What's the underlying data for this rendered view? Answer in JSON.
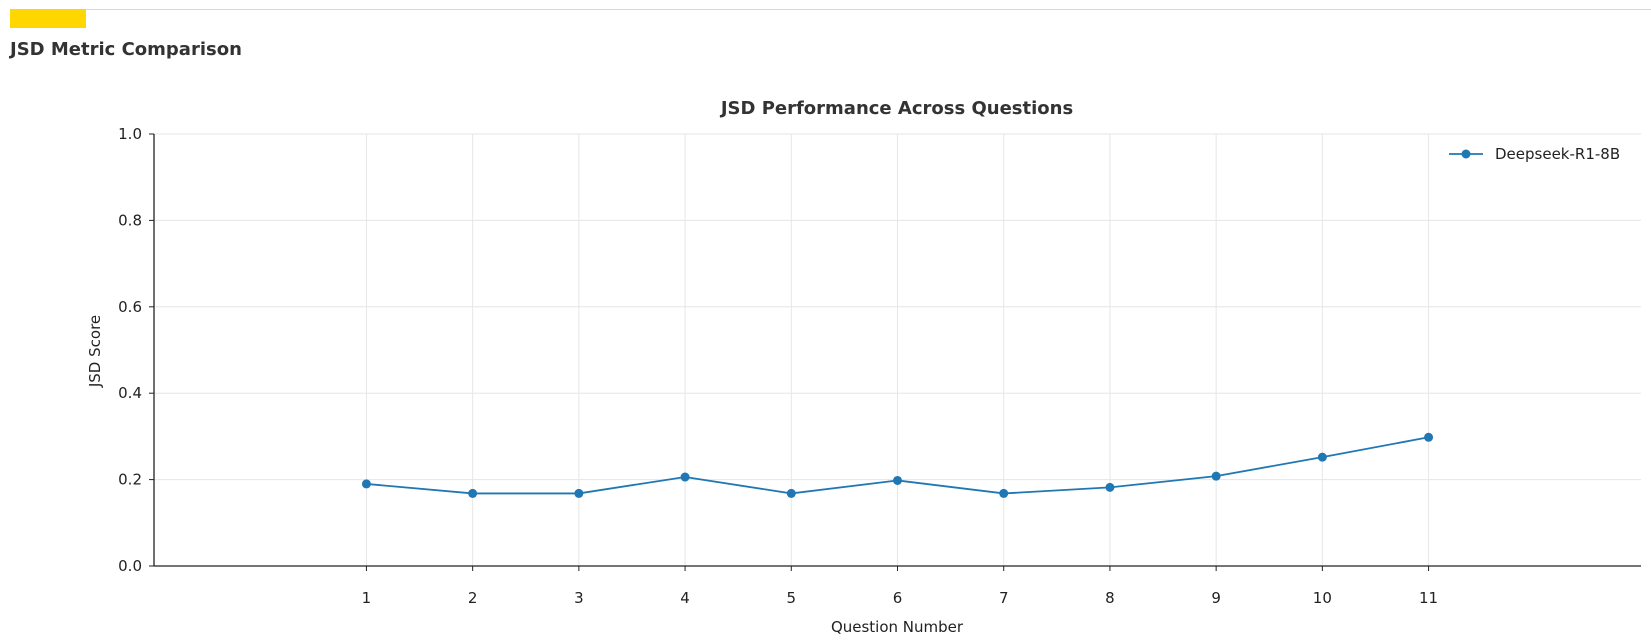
{
  "page": {
    "title": "JSD Metric Comparison",
    "accent_color": "#FFD700"
  },
  "chart_data": {
    "type": "line",
    "title": "JSD Performance Across Questions",
    "xlabel": "Question Number",
    "ylabel": "JSD Score",
    "x": [
      1,
      2,
      3,
      4,
      5,
      6,
      7,
      8,
      9,
      10,
      11
    ],
    "xlim": [
      -1,
      13
    ],
    "ylim": [
      0,
      1
    ],
    "yticks": [
      "0.0",
      "0.2",
      "0.4",
      "0.6",
      "0.8",
      "1.0"
    ],
    "grid": true,
    "legend": "top-right",
    "series": [
      {
        "name": "Deepseek-R1-8B",
        "color": "#1f77b4",
        "marker": "circle",
        "values": [
          0.19,
          0.168,
          0.168,
          0.206,
          0.168,
          0.198,
          0.168,
          0.182,
          0.208,
          0.252,
          0.298
        ]
      }
    ]
  }
}
